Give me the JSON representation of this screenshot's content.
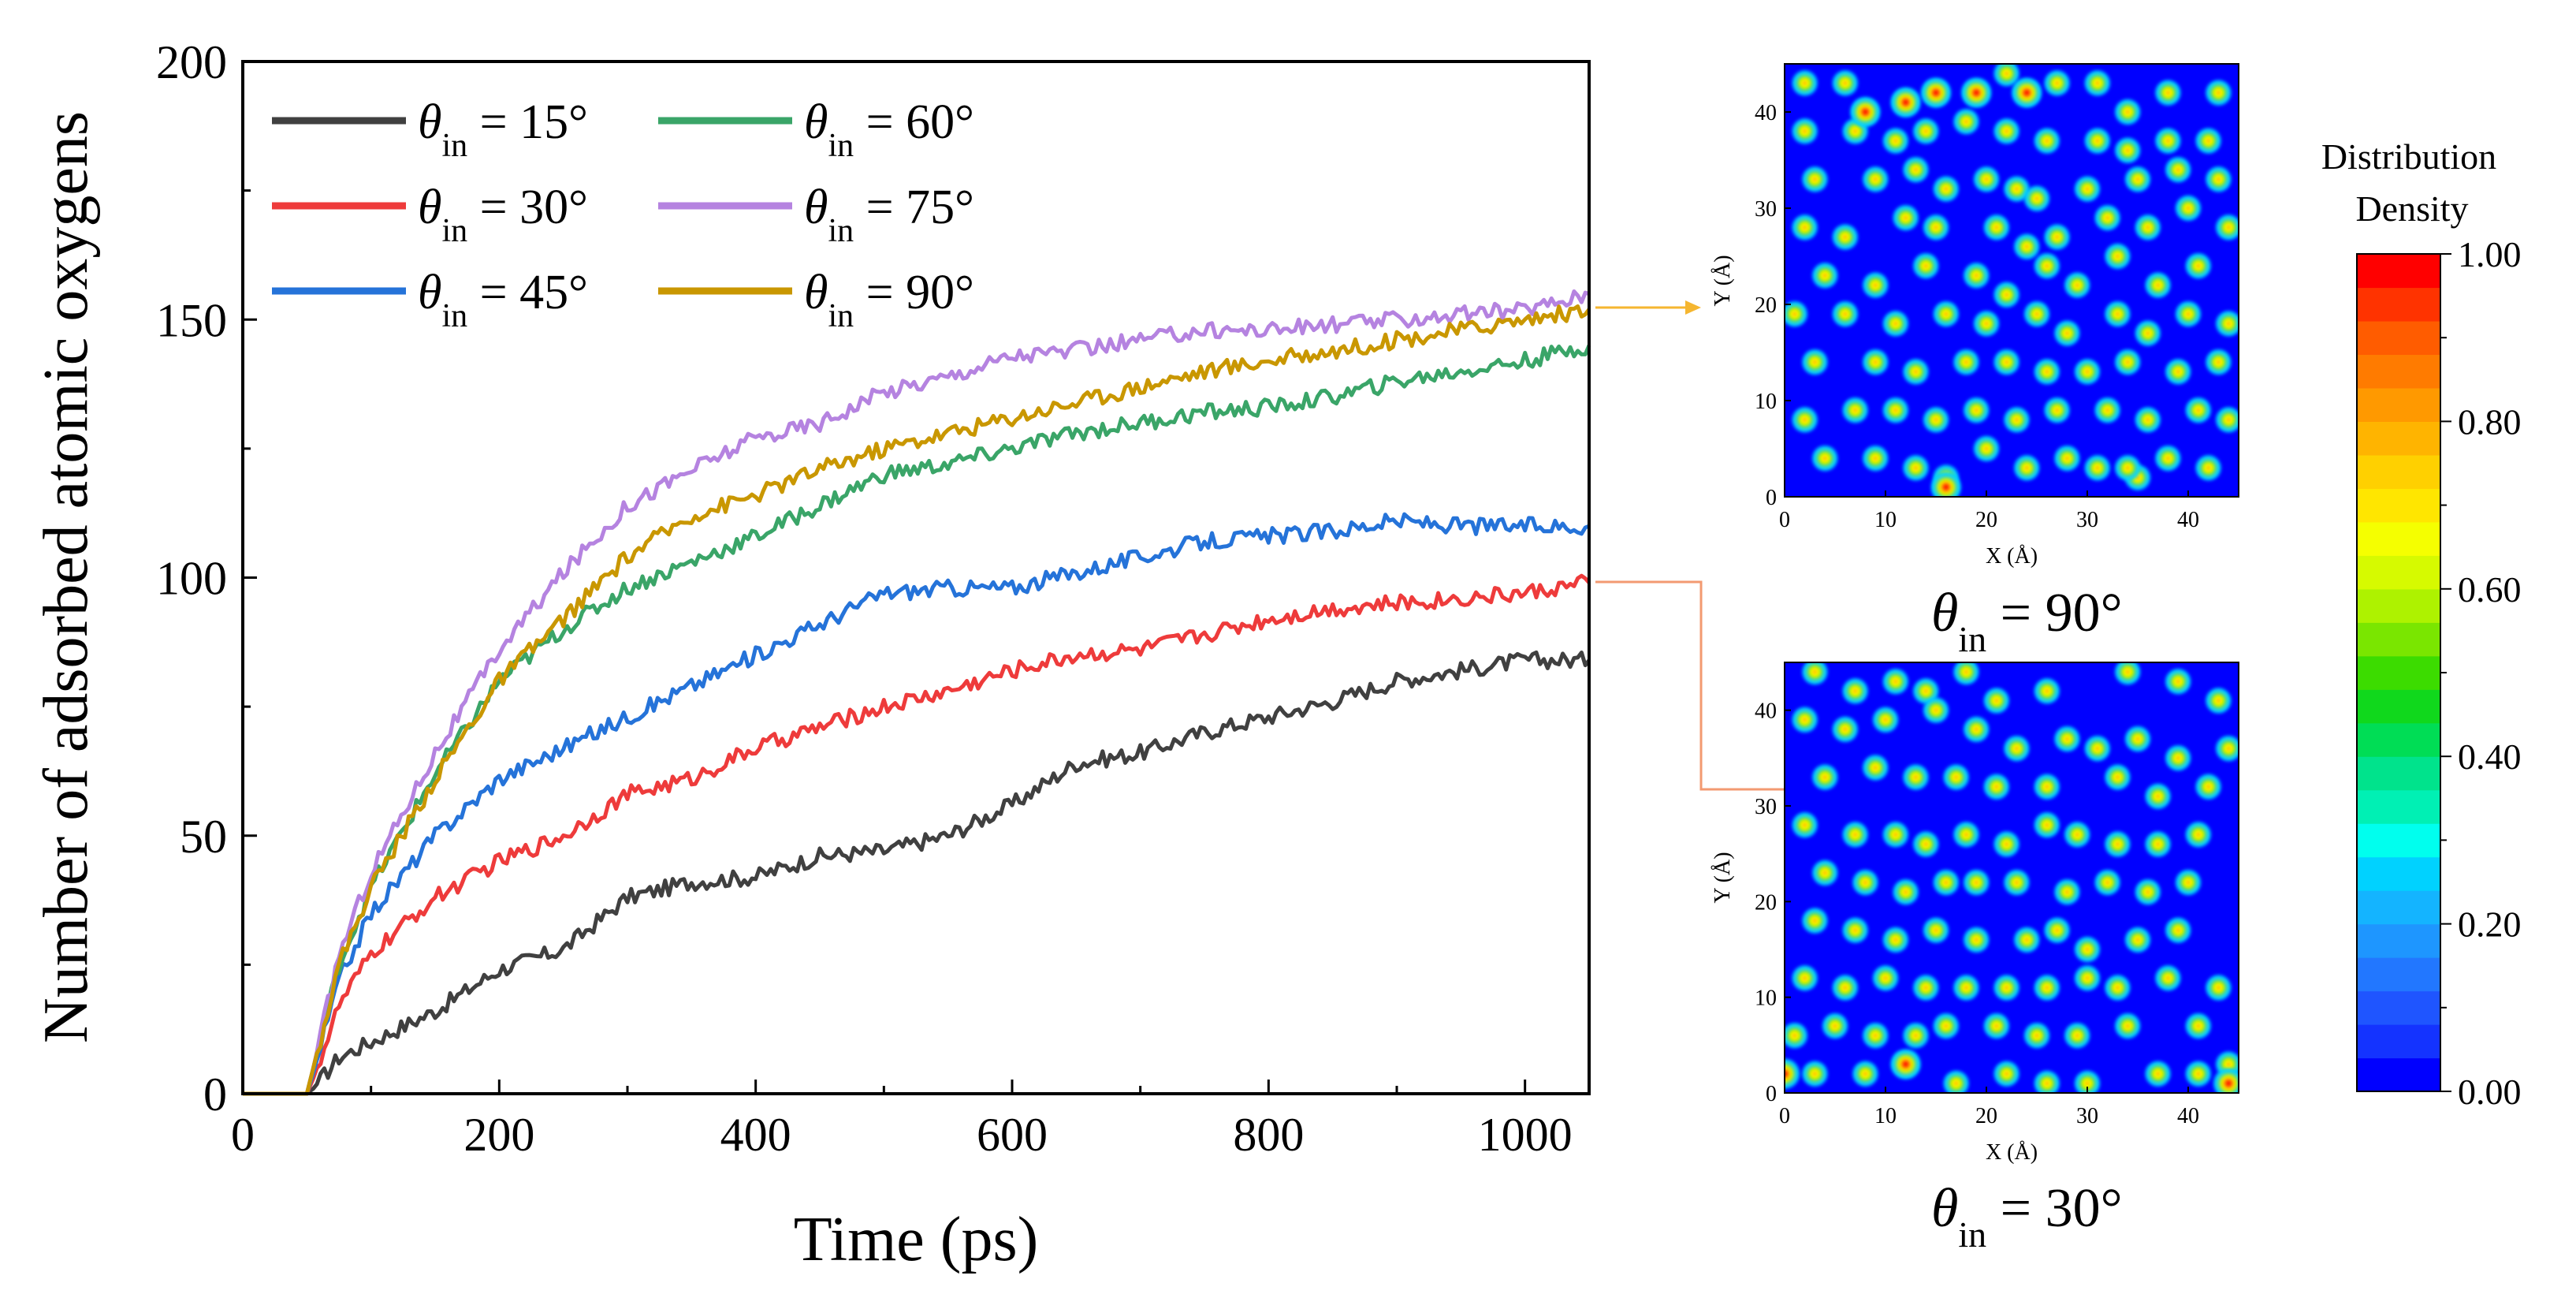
{
  "chart_data": [
    {
      "type": "line",
      "xlabel": "Time (ps)",
      "ylabel": "Number of adsorbed atomic oxygens",
      "xlim": [
        0,
        1050
      ],
      "ylim": [
        0,
        200
      ],
      "xticks": [
        0,
        200,
        400,
        600,
        800,
        1000
      ],
      "yticks": [
        0,
        50,
        100,
        150,
        200
      ],
      "legend": "top-left",
      "x": [
        0,
        50,
        55,
        75,
        100,
        150,
        200,
        250,
        300,
        350,
        400,
        450,
        500,
        550,
        600,
        650,
        700,
        750,
        800,
        850,
        900,
        950,
        1000,
        1050
      ],
      "series": [
        {
          "name": "θ_in = 15°",
          "color": "#404040",
          "values": [
            0,
            0,
            1,
            7,
            10,
            16,
            24,
            28,
            38,
            41,
            42,
            46,
            47,
            50,
            56,
            64,
            66,
            70,
            73,
            76,
            80,
            82,
            84,
            84
          ]
        },
        {
          "name": "θ_in = 30°",
          "color": "#ee3b3b",
          "values": [
            0,
            0,
            3,
            17,
            27,
            38,
            45,
            50,
            58,
            61,
            67,
            71,
            75,
            78,
            82,
            85,
            86,
            89,
            92,
            94,
            95,
            96,
            97,
            99
          ]
        },
        {
          "name": "θ_in = 45°",
          "color": "#2573d9",
          "values": [
            0,
            0,
            4,
            22,
            35,
            50,
            61,
            67,
            73,
            79,
            85,
            91,
            97,
            98,
            98,
            101,
            104,
            107,
            108,
            109,
            111,
            110,
            110,
            110
          ]
        },
        {
          "name": "θ_in = 60°",
          "color": "#3aa568",
          "values": [
            0,
            0,
            5,
            25,
            40,
            62,
            80,
            90,
            98,
            103,
            108,
            114,
            120,
            122,
            125,
            128,
            130,
            132,
            133,
            135,
            138,
            140,
            142,
            145
          ]
        },
        {
          "name": "θ_in = 75°",
          "color": "#b583e0",
          "values": [
            0,
            0,
            5,
            27,
            43,
            66,
            86,
            101,
            114,
            121,
            127,
            130,
            136,
            139,
            143,
            144,
            146,
            148,
            148,
            149,
            150,
            151,
            152,
            155
          ]
        },
        {
          "name": "θ_in = 90°",
          "color": "#c99700",
          "values": [
            0,
            0,
            5,
            25,
            40,
            61,
            80,
            92,
            104,
            112,
            116,
            121,
            125,
            128,
            131,
            134,
            137,
            140,
            142,
            144,
            146,
            148,
            150,
            152
          ]
        }
      ]
    },
    {
      "type": "heatmap",
      "title_prefix": "θ",
      "title_subscript": "in",
      "title_suffix": " = 90°",
      "xlabel": "X (Å)",
      "ylabel": "Y (Å)",
      "xlim": [
        0,
        45
      ],
      "ylim": [
        0,
        45
      ],
      "xticks": [
        0,
        10,
        20,
        30,
        40
      ],
      "yticks": [
        0,
        10,
        20,
        30,
        40
      ],
      "points": [
        [
          2,
          43
        ],
        [
          6,
          43
        ],
        [
          8,
          40
        ],
        [
          12,
          41
        ],
        [
          15,
          42
        ],
        [
          19,
          42
        ],
        [
          22,
          44
        ],
        [
          24,
          42
        ],
        [
          27,
          43
        ],
        [
          31,
          43
        ],
        [
          34,
          40
        ],
        [
          38,
          42
        ],
        [
          43,
          42
        ],
        [
          2,
          38
        ],
        [
          7,
          38
        ],
        [
          11,
          37
        ],
        [
          14,
          38
        ],
        [
          18,
          39
        ],
        [
          22,
          38
        ],
        [
          26,
          37
        ],
        [
          31,
          37
        ],
        [
          34,
          36
        ],
        [
          38,
          37
        ],
        [
          42,
          37
        ],
        [
          3,
          33
        ],
        [
          9,
          33
        ],
        [
          13,
          34
        ],
        [
          16,
          32
        ],
        [
          20,
          33
        ],
        [
          23,
          32
        ],
        [
          25,
          31
        ],
        [
          30,
          32
        ],
        [
          35,
          33
        ],
        [
          39,
          34
        ],
        [
          43,
          33
        ],
        [
          2,
          28
        ],
        [
          6,
          27
        ],
        [
          12,
          29
        ],
        [
          15,
          28
        ],
        [
          21,
          28
        ],
        [
          24,
          26
        ],
        [
          27,
          27
        ],
        [
          32,
          29
        ],
        [
          36,
          28
        ],
        [
          40,
          30
        ],
        [
          44,
          28
        ],
        [
          4,
          23
        ],
        [
          9,
          22
        ],
        [
          14,
          24
        ],
        [
          19,
          23
        ],
        [
          22,
          21
        ],
        [
          26,
          24
        ],
        [
          29,
          22
        ],
        [
          33,
          25
        ],
        [
          37,
          22
        ],
        [
          41,
          24
        ],
        [
          1,
          19
        ],
        [
          6,
          19
        ],
        [
          11,
          18
        ],
        [
          16,
          19
        ],
        [
          20,
          18
        ],
        [
          25,
          19
        ],
        [
          28,
          17
        ],
        [
          33,
          19
        ],
        [
          36,
          17
        ],
        [
          40,
          19
        ],
        [
          44,
          18
        ],
        [
          3,
          14
        ],
        [
          9,
          14
        ],
        [
          13,
          13
        ],
        [
          18,
          14
        ],
        [
          22,
          14
        ],
        [
          26,
          13
        ],
        [
          30,
          13
        ],
        [
          34,
          14
        ],
        [
          39,
          13
        ],
        [
          43,
          14
        ],
        [
          2,
          8
        ],
        [
          7,
          9
        ],
        [
          11,
          9
        ],
        [
          15,
          8
        ],
        [
          19,
          9
        ],
        [
          23,
          8
        ],
        [
          27,
          9
        ],
        [
          32,
          9
        ],
        [
          36,
          8
        ],
        [
          41,
          9
        ],
        [
          44,
          8
        ],
        [
          4,
          4
        ],
        [
          9,
          4
        ],
        [
          13,
          3
        ],
        [
          16,
          2
        ],
        [
          20,
          5
        ],
        [
          24,
          3
        ],
        [
          28,
          4
        ],
        [
          31,
          3
        ],
        [
          35,
          2
        ],
        [
          38,
          4
        ],
        [
          42,
          3
        ],
        [
          16,
          1
        ],
        [
          34,
          3
        ]
      ],
      "hot": [
        [
          15,
          42
        ],
        [
          12,
          41
        ],
        [
          16,
          1
        ],
        [
          19,
          42
        ],
        [
          24,
          42
        ],
        [
          8,
          40
        ]
      ]
    },
    {
      "type": "heatmap",
      "title_prefix": "θ",
      "title_subscript": "in",
      "title_suffix": " = 30°",
      "xlabel": "X (Å)",
      "ylabel": "Y (Å)",
      "xlim": [
        0,
        45
      ],
      "ylim": [
        0,
        45
      ],
      "xticks": [
        0,
        10,
        20,
        30,
        40
      ],
      "yticks": [
        0,
        10,
        20,
        30,
        40
      ],
      "points": [
        [
          3,
          44
        ],
        [
          7,
          42
        ],
        [
          11,
          43
        ],
        [
          14,
          42
        ],
        [
          18,
          44
        ],
        [
          21,
          41
        ],
        [
          26,
          42
        ],
        [
          34,
          44
        ],
        [
          39,
          43
        ],
        [
          43,
          41
        ],
        [
          2,
          39
        ],
        [
          6,
          38
        ],
        [
          10,
          39
        ],
        [
          15,
          40
        ],
        [
          19,
          38
        ],
        [
          23,
          36
        ],
        [
          28,
          37
        ],
        [
          31,
          36
        ],
        [
          35,
          37
        ],
        [
          39,
          35
        ],
        [
          44,
          36
        ],
        [
          4,
          33
        ],
        [
          9,
          34
        ],
        [
          13,
          33
        ],
        [
          17,
          33
        ],
        [
          21,
          32
        ],
        [
          26,
          32
        ],
        [
          33,
          33
        ],
        [
          37,
          31
        ],
        [
          42,
          32
        ],
        [
          2,
          28
        ],
        [
          7,
          27
        ],
        [
          11,
          27
        ],
        [
          14,
          26
        ],
        [
          18,
          27
        ],
        [
          22,
          26
        ],
        [
          26,
          28
        ],
        [
          29,
          27
        ],
        [
          33,
          26
        ],
        [
          37,
          26
        ],
        [
          41,
          27
        ],
        [
          4,
          23
        ],
        [
          8,
          22
        ],
        [
          12,
          21
        ],
        [
          16,
          22
        ],
        [
          19,
          22
        ],
        [
          23,
          22
        ],
        [
          28,
          21
        ],
        [
          32,
          22
        ],
        [
          36,
          21
        ],
        [
          40,
          22
        ],
        [
          3,
          18
        ],
        [
          7,
          17
        ],
        [
          11,
          16
        ],
        [
          15,
          17
        ],
        [
          19,
          16
        ],
        [
          24,
          16
        ],
        [
          27,
          17
        ],
        [
          30,
          15
        ],
        [
          35,
          16
        ],
        [
          39,
          17
        ],
        [
          2,
          12
        ],
        [
          6,
          11
        ],
        [
          10,
          12
        ],
        [
          14,
          11
        ],
        [
          18,
          11
        ],
        [
          22,
          11
        ],
        [
          26,
          11
        ],
        [
          30,
          12
        ],
        [
          33,
          11
        ],
        [
          38,
          12
        ],
        [
          43,
          11
        ],
        [
          1,
          6
        ],
        [
          5,
          7
        ],
        [
          9,
          6
        ],
        [
          13,
          6
        ],
        [
          16,
          7
        ],
        [
          21,
          7
        ],
        [
          25,
          6
        ],
        [
          29,
          6
        ],
        [
          34,
          7
        ],
        [
          41,
          7
        ],
        [
          3,
          2
        ],
        [
          8,
          2
        ],
        [
          12,
          3
        ],
        [
          17,
          1
        ],
        [
          22,
          2
        ],
        [
          26,
          1
        ],
        [
          30,
          1
        ],
        [
          37,
          2
        ],
        [
          41,
          2
        ],
        [
          44,
          3
        ]
      ],
      "hot": [
        [
          12,
          3
        ],
        [
          0,
          2
        ],
        [
          44,
          1
        ]
      ]
    },
    {
      "type": "colorbar",
      "title_line1": "Distribution",
      "title_line2": "Density",
      "range": [
        0,
        1
      ],
      "tick_labels": [
        "1.00",
        "0.80",
        "0.60",
        "0.40",
        "0.20",
        "0.00"
      ],
      "colors": [
        "#0000ff",
        "#1433ff",
        "#1f55ff",
        "#2277ff",
        "#1e96ff",
        "#14b4ff",
        "#00d2ff",
        "#00ffee",
        "#00f0b4",
        "#00e38c",
        "#00dd55",
        "#10d81c",
        "#3cdc00",
        "#7ae600",
        "#aef200",
        "#d6fa00",
        "#f5ff00",
        "#ffe600",
        "#ffd000",
        "#ffb400",
        "#ff9900",
        "#ff7b00",
        "#ff5c00",
        "#ff3300",
        "#ff0000"
      ]
    }
  ],
  "annotation_colors": {
    "arrow_90": "#f5b630",
    "arrow_30": "#f39a71"
  }
}
